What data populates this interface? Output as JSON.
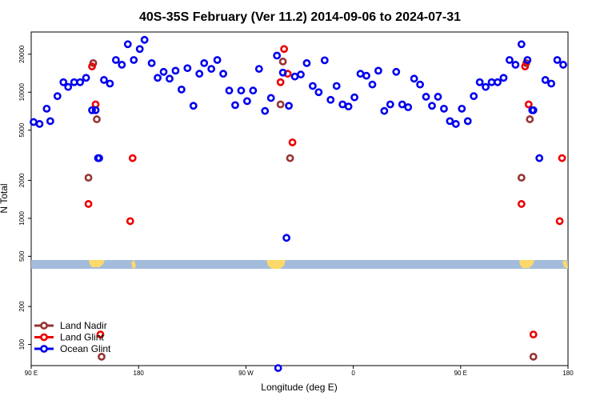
{
  "chart_data": {
    "type": "scatter",
    "title": "40S-35S February (Ver 11.2)   2014-09-06 to 2024-07-31",
    "xlabel": "Longitude (deg E)",
    "ylabel": "N Total",
    "y_scale": "log",
    "x_range": [
      90,
      540
    ],
    "y_range": [
      68,
      30000
    ],
    "x_ticks": [
      {
        "value": 90,
        "label": "90 E"
      },
      {
        "value": 180,
        "label": "180"
      },
      {
        "value": 270,
        "label": "90 W"
      },
      {
        "value": 360,
        "label": "0"
      },
      {
        "value": 450,
        "label": "90 E"
      },
      {
        "value": 540,
        "label": "180"
      }
    ],
    "y_ticks": [
      {
        "value": 100,
        "label": "100"
      },
      {
        "value": 200,
        "label": "200"
      },
      {
        "value": 500,
        "label": "500"
      },
      {
        "value": 1000,
        "label": "1000"
      },
      {
        "value": 2000,
        "label": "2000"
      },
      {
        "value": 5000,
        "label": "5000"
      },
      {
        "value": 10000,
        "label": "10000"
      },
      {
        "value": 20000,
        "label": "20000"
      }
    ],
    "legend_position": "bottom-left",
    "series": [
      {
        "name": "Land Nadir",
        "color": "#993333",
        "x": [
          138,
          142,
          145,
          149,
          299,
          301,
          307,
          501,
          505,
          508,
          511
        ],
        "y": [
          2100,
          17000,
          6100,
          80,
          8000,
          17500,
          3000,
          2100,
          17000,
          6100,
          80
        ]
      },
      {
        "name": "Land Glint",
        "color": "#ee0000",
        "x": [
          138,
          141,
          144,
          148,
          173,
          175,
          299,
          302,
          305,
          309,
          501,
          504,
          507,
          511,
          533,
          535
        ],
        "y": [
          1300,
          16000,
          8000,
          120,
          950,
          3000,
          12000,
          22000,
          14000,
          4000,
          1300,
          16000,
          8000,
          120,
          950,
          3000
        ]
      },
      {
        "name": "Ocean Glint",
        "color": "#0000ee",
        "x": [
          92,
          97,
          103,
          106,
          112,
          117,
          121,
          126,
          131,
          136,
          141,
          146,
          151,
          156,
          161,
          166,
          171,
          176,
          181,
          185,
          191,
          196,
          201,
          206,
          211,
          216,
          221,
          226,
          231,
          235,
          241,
          246,
          251,
          256,
          261,
          266,
          271,
          276,
          281,
          286,
          291,
          296,
          301,
          306,
          311,
          316,
          321,
          326,
          331,
          336,
          341,
          346,
          351,
          356,
          361,
          366,
          371,
          376,
          381,
          386,
          391,
          396,
          401,
          406,
          411,
          416,
          421,
          426,
          431,
          436,
          441,
          446,
          451,
          456,
          461,
          466,
          471,
          476,
          481,
          486,
          491,
          496,
          501,
          506,
          511,
          516,
          521,
          526,
          531,
          536,
          144,
          147,
          510,
          304,
          297
        ],
        "y": [
          5800,
          5600,
          7400,
          5900,
          9300,
          12000,
          11000,
          12000,
          12000,
          13000,
          7200,
          3000,
          12500,
          11700,
          18000,
          16500,
          24000,
          18000,
          22000,
          26000,
          17000,
          13000,
          14500,
          12800,
          14800,
          10500,
          15500,
          7800,
          14000,
          17000,
          15300,
          18000,
          14000,
          10300,
          7900,
          10300,
          8500,
          10300,
          15300,
          7100,
          9000,
          19500,
          14300,
          7800,
          13300,
          13800,
          17000,
          11200,
          10000,
          17900,
          8700,
          11200,
          8000,
          7700,
          9100,
          14000,
          13500,
          11500,
          14800,
          7100,
          8000,
          14500,
          8000,
          7600,
          12800,
          11500,
          9200,
          7800,
          9200,
          7400,
          5900,
          5600,
          7400,
          5900,
          9300,
          12000,
          11000,
          12000,
          12000,
          13000,
          18000,
          16500,
          24000,
          18000,
          7200,
          3000,
          12500,
          11700,
          18000,
          16500,
          7200,
          3000,
          7200,
          700,
          65
        ]
      }
    ]
  }
}
